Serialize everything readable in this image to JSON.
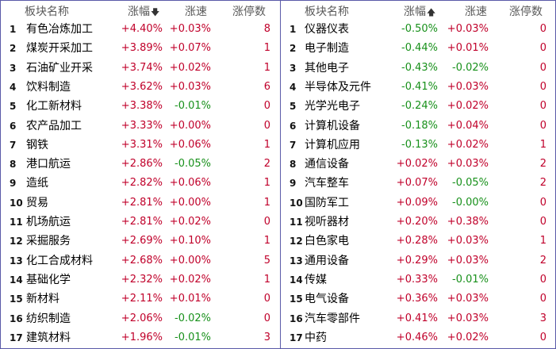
{
  "left_panel": {
    "headers": {
      "name": "板块名称",
      "change": "涨幅",
      "speed": "涨速",
      "limit": "涨停数"
    },
    "sort_indicator": "desc",
    "rows": [
      {
        "idx": "1",
        "name": "有色冶炼加工",
        "change": "+4.40%",
        "speed": "+0.03%",
        "limit": "8"
      },
      {
        "idx": "2",
        "name": "煤炭开采加工",
        "change": "+3.89%",
        "speed": "+0.07%",
        "limit": "1"
      },
      {
        "idx": "3",
        "name": "石油矿业开采",
        "change": "+3.74%",
        "speed": "+0.02%",
        "limit": "1"
      },
      {
        "idx": "4",
        "name": "饮料制造",
        "change": "+3.62%",
        "speed": "+0.03%",
        "limit": "6"
      },
      {
        "idx": "5",
        "name": "化工新材料",
        "change": "+3.38%",
        "speed": "-0.01%",
        "limit": "0"
      },
      {
        "idx": "6",
        "name": "农产品加工",
        "change": "+3.33%",
        "speed": "+0.00%",
        "limit": "0"
      },
      {
        "idx": "7",
        "name": "钢铁",
        "change": "+3.31%",
        "speed": "+0.06%",
        "limit": "1"
      },
      {
        "idx": "8",
        "name": "港口航运",
        "change": "+2.86%",
        "speed": "-0.05%",
        "limit": "2"
      },
      {
        "idx": "9",
        "name": "造纸",
        "change": "+2.82%",
        "speed": "+0.06%",
        "limit": "1"
      },
      {
        "idx": "10",
        "name": "贸易",
        "change": "+2.81%",
        "speed": "+0.00%",
        "limit": "1"
      },
      {
        "idx": "11",
        "name": "机场航运",
        "change": "+2.81%",
        "speed": "+0.02%",
        "limit": "0"
      },
      {
        "idx": "12",
        "name": "采掘服务",
        "change": "+2.69%",
        "speed": "+0.10%",
        "limit": "1"
      },
      {
        "idx": "13",
        "name": "化工合成材料",
        "change": "+2.68%",
        "speed": "+0.00%",
        "limit": "5"
      },
      {
        "idx": "14",
        "name": "基础化学",
        "change": "+2.32%",
        "speed": "+0.02%",
        "limit": "1"
      },
      {
        "idx": "15",
        "name": "新材料",
        "change": "+2.11%",
        "speed": "+0.01%",
        "limit": "0"
      },
      {
        "idx": "16",
        "name": "纺织制造",
        "change": "+2.06%",
        "speed": "-0.02%",
        "limit": "0"
      },
      {
        "idx": "17",
        "name": "建筑材料",
        "change": "+1.96%",
        "speed": "-0.01%",
        "limit": "3"
      }
    ]
  },
  "right_panel": {
    "headers": {
      "name": "板块名称",
      "change": "涨幅",
      "speed": "涨速",
      "limit": "涨停数"
    },
    "sort_indicator": "asc",
    "rows": [
      {
        "idx": "1",
        "name": "仪器仪表",
        "change": "-0.50%",
        "speed": "+0.03%",
        "limit": "0"
      },
      {
        "idx": "2",
        "name": "电子制造",
        "change": "-0.44%",
        "speed": "+0.01%",
        "limit": "0"
      },
      {
        "idx": "3",
        "name": "其他电子",
        "change": "-0.43%",
        "speed": "-0.02%",
        "limit": "0"
      },
      {
        "idx": "4",
        "name": "半导体及元件",
        "change": "-0.41%",
        "speed": "+0.03%",
        "limit": "0"
      },
      {
        "idx": "5",
        "name": "光学光电子",
        "change": "-0.24%",
        "speed": "+0.02%",
        "limit": "0"
      },
      {
        "idx": "6",
        "name": "计算机设备",
        "change": "-0.18%",
        "speed": "+0.04%",
        "limit": "0"
      },
      {
        "idx": "7",
        "name": "计算机应用",
        "change": "-0.13%",
        "speed": "+0.02%",
        "limit": "1"
      },
      {
        "idx": "8",
        "name": "通信设备",
        "change": "+0.02%",
        "speed": "+0.03%",
        "limit": "2"
      },
      {
        "idx": "9",
        "name": "汽车整车",
        "change": "+0.07%",
        "speed": "-0.05%",
        "limit": "2"
      },
      {
        "idx": "10",
        "name": "国防军工",
        "change": "+0.09%",
        "speed": "-0.00%",
        "limit": "0"
      },
      {
        "idx": "11",
        "name": "视听器材",
        "change": "+0.20%",
        "speed": "+0.38%",
        "limit": "0"
      },
      {
        "idx": "12",
        "name": "白色家电",
        "change": "+0.28%",
        "speed": "+0.03%",
        "limit": "1"
      },
      {
        "idx": "13",
        "name": "通用设备",
        "change": "+0.29%",
        "speed": "+0.03%",
        "limit": "2"
      },
      {
        "idx": "14",
        "name": "传媒",
        "change": "+0.33%",
        "speed": "-0.01%",
        "limit": "0"
      },
      {
        "idx": "15",
        "name": "电气设备",
        "change": "+0.36%",
        "speed": "+0.03%",
        "limit": "0"
      },
      {
        "idx": "16",
        "name": "汽车零部件",
        "change": "+0.41%",
        "speed": "+0.03%",
        "limit": "3"
      },
      {
        "idx": "17",
        "name": "中药",
        "change": "+0.46%",
        "speed": "+0.02%",
        "limit": "0"
      }
    ]
  },
  "colors": {
    "up": "#c0002a",
    "down": "#17901a",
    "border": "#5a5aa8",
    "header_text": "#5a5a5a"
  },
  "icons": {
    "sort_desc": "arrow-down-icon",
    "sort_asc": "arrow-up-icon"
  }
}
